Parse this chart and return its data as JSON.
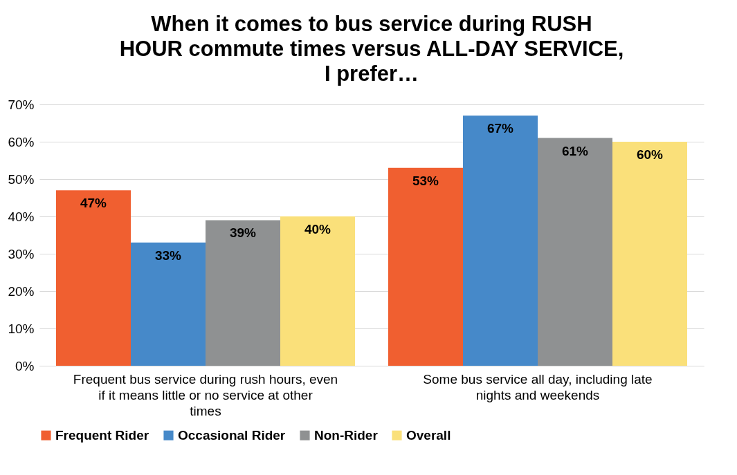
{
  "chart_data": {
    "type": "bar",
    "title": "When it comes to bus service during RUSH HOUR commute times versus ALL-DAY SERVICE, I prefer…",
    "categories": [
      "Frequent bus service during rush hours, even if it means little or no service at other times",
      "Some bus service all day, including late nights and weekends"
    ],
    "series": [
      {
        "name": "Frequent Rider",
        "color": "#f05f30",
        "values": [
          47,
          53
        ],
        "value_labels": [
          "47%",
          "53%"
        ]
      },
      {
        "name": "Occasional Rider",
        "color": "#4689c9",
        "values": [
          33,
          67
        ],
        "value_labels": [
          "33%",
          "67%"
        ]
      },
      {
        "name": "Non-Rider",
        "color": "#8f9192",
        "values": [
          39,
          61
        ],
        "value_labels": [
          "39%",
          "61%"
        ]
      },
      {
        "name": "Overall",
        "color": "#fae07a",
        "values": [
          40,
          60
        ],
        "value_labels": [
          "40%",
          "60%"
        ]
      }
    ],
    "ylim": [
      0,
      70
    ],
    "yticks": [
      {
        "value": 0,
        "label": "0%"
      },
      {
        "value": 10,
        "label": "10%"
      },
      {
        "value": 20,
        "label": "20%"
      },
      {
        "value": 30,
        "label": "30%"
      },
      {
        "value": 40,
        "label": "40%"
      },
      {
        "value": 50,
        "label": "50%"
      },
      {
        "value": 60,
        "label": "60%"
      },
      {
        "value": 70,
        "label": "70%"
      }
    ],
    "grid": "y",
    "legend": "bottom"
  }
}
